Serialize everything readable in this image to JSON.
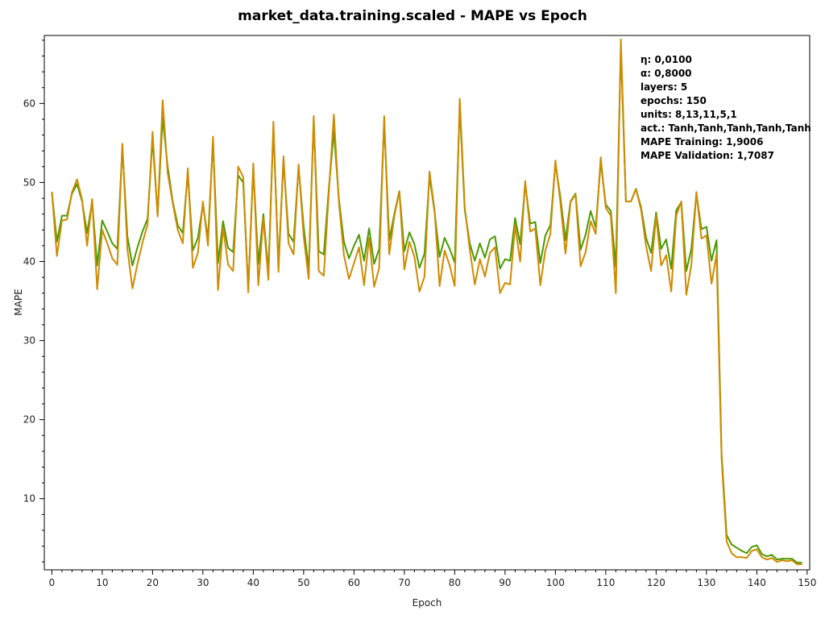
{
  "chart_data": {
    "type": "line",
    "title": "market_data.training.scaled - MAPE vs Epoch",
    "xlabel": "Epoch",
    "ylabel": "MAPE",
    "xlim": [
      -1.5,
      150.5
    ],
    "ylim": [
      1,
      68.6
    ],
    "xticks": [
      0,
      10,
      20,
      30,
      40,
      50,
      60,
      70,
      80,
      90,
      100,
      110,
      120,
      130,
      140,
      150
    ],
    "yticks": [
      10,
      20,
      30,
      40,
      50,
      60
    ],
    "grid": false,
    "series": [
      {
        "color": "#4a9a00",
        "values": [
          48.8,
          42.5,
          45.8,
          45.8,
          48.6,
          49.8,
          47.6,
          43.6,
          47.6,
          39.5,
          45.2,
          43.8,
          42.3,
          41.6,
          54.5,
          43.2,
          39.5,
          41.8,
          43.8,
          45.4,
          55.5,
          45.9,
          58.2,
          52.0,
          47.6,
          44.6,
          43.6,
          51.2,
          41.4,
          43.0,
          47.2,
          42.9,
          55.2,
          39.8,
          45.1,
          41.7,
          41.2,
          50.9,
          50.0,
          36.5,
          51.8,
          39.7,
          46.0,
          38.7,
          57.0,
          39.6,
          52.8,
          43.5,
          42.5,
          51.9,
          44.5,
          39.0,
          57.9,
          41.3,
          40.9,
          49.2,
          56.5,
          47.9,
          42.5,
          40.4,
          42.0,
          43.4,
          40.1,
          44.2,
          39.7,
          41.6,
          57.8,
          42.7,
          46.0,
          48.9,
          41.3,
          43.7,
          42.2,
          39.2,
          41.0,
          50.8,
          46.3,
          40.6,
          43.0,
          41.6,
          39.9,
          59.7,
          46.5,
          42.3,
          40.1,
          42.3,
          40.5,
          42.8,
          43.2,
          39.1,
          40.3,
          40.1,
          45.5,
          42.2,
          49.8,
          44.8,
          45.0,
          39.8,
          43.3,
          44.6,
          52.4,
          48.1,
          42.7,
          47.6,
          48.6,
          41.5,
          43.4,
          46.4,
          44.3,
          52.6,
          47.2,
          46.4,
          39.3,
          67.1,
          47.6,
          47.6,
          49.2,
          46.9,
          43.0,
          41.1,
          46.2,
          41.6,
          42.8,
          39.1,
          46.5,
          47.5,
          38.8,
          41.6,
          48.6,
          44.1,
          44.4,
          40.1,
          42.7,
          15.7,
          5.4,
          4.2,
          3.8,
          3.4,
          3.1,
          3.9,
          4.1,
          3.0,
          2.7,
          2.9,
          2.3,
          2.4,
          2.4,
          2.4,
          1.9,
          1.9
        ]
      },
      {
        "color": "#d08a00",
        "values": [
          48.8,
          40.7,
          45.2,
          45.3,
          48.8,
          50.4,
          47.8,
          42.0,
          47.9,
          36.5,
          44.0,
          42.3,
          40.4,
          39.6,
          54.9,
          41.6,
          36.6,
          39.7,
          42.4,
          44.7,
          56.4,
          45.7,
          60.4,
          51.2,
          47.4,
          44.0,
          42.3,
          51.8,
          39.2,
          41.1,
          47.6,
          42.0,
          55.8,
          36.4,
          44.3,
          39.6,
          38.8,
          52.0,
          50.7,
          36.1,
          52.4,
          37.0,
          45.5,
          37.7,
          57.7,
          38.7,
          53.3,
          42.3,
          40.9,
          52.3,
          43.2,
          37.8,
          58.4,
          38.8,
          38.2,
          48.7,
          58.6,
          47.5,
          40.8,
          37.8,
          39.8,
          41.8,
          37.0,
          43.0,
          36.8,
          39.2,
          58.4,
          40.9,
          45.7,
          48.9,
          39.0,
          42.5,
          40.6,
          36.2,
          38.1,
          51.4,
          46.5,
          36.9,
          41.4,
          39.5,
          36.9,
          60.6,
          46.9,
          41.5,
          37.1,
          40.3,
          38.1,
          41.1,
          41.8,
          36.0,
          37.3,
          37.1,
          44.6,
          40.0,
          50.2,
          43.8,
          44.2,
          37.0,
          41.4,
          43.5,
          52.8,
          47.4,
          41.0,
          47.5,
          48.5,
          39.4,
          41.2,
          45.1,
          43.5,
          53.2,
          46.8,
          45.8,
          36.0,
          68.1,
          47.6,
          47.6,
          49.2,
          46.6,
          42.0,
          38.8,
          45.8,
          39.5,
          40.8,
          36.2,
          45.8,
          47.6,
          35.8,
          39.6,
          48.8,
          42.9,
          43.3,
          37.2,
          40.9,
          15.1,
          4.6,
          3.1,
          2.6,
          2.6,
          2.5,
          3.4,
          3.6,
          2.6,
          2.3,
          2.5,
          2.0,
          2.2,
          2.1,
          2.2,
          1.7,
          1.7
        ]
      }
    ],
    "annotation": [
      "η: 0,0100",
      "α: 0,8000",
      "layers: 5",
      "epochs: 150",
      "units: 8,13,11,5,1",
      "act.: Tanh,Tanh,Tanh,Tanh,Tanh",
      "MAPE Training: 1,9006",
      "MAPE Validation: 1,7087"
    ]
  }
}
